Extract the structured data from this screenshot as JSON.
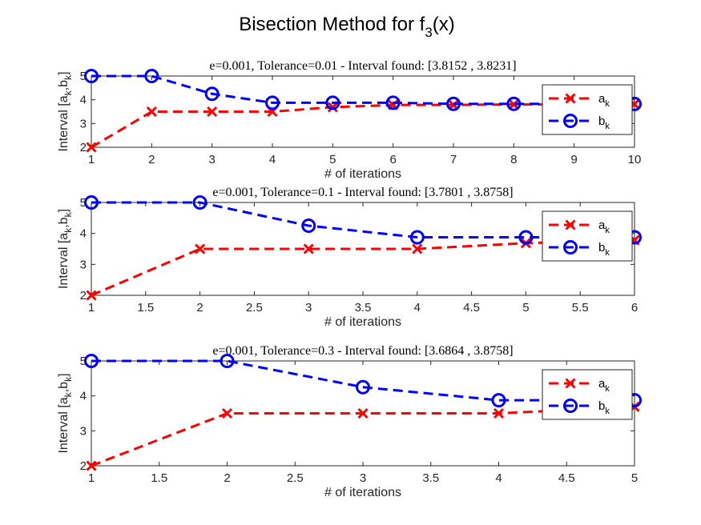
{
  "figure": {
    "title": "Bisection Method for f",
    "title_subscript": "3",
    "title_suffix": "(x)"
  },
  "colors": {
    "a_series": "#ff0000",
    "b_series": "#0000ff",
    "axes": "#262626"
  },
  "chart_data": [
    {
      "type": "line",
      "title": "e=0.001, Tolerance=0.01 - Interval found: [3.8152 , 3.8231]",
      "xlabel": "# of iterations",
      "ylabel": "Interval [a_k,b_k]",
      "xlim": [
        1,
        10
      ],
      "ylim": [
        2,
        5
      ],
      "xticks": [
        1,
        2,
        3,
        4,
        5,
        6,
        7,
        8,
        9,
        10
      ],
      "xtick_labels": [
        "1",
        "2",
        "3",
        "4",
        "5",
        "6",
        "7",
        "8",
        "9",
        "10"
      ],
      "yticks": [
        2,
        3,
        4,
        5
      ],
      "ytick_labels": [
        "2",
        "3",
        "4",
        "5"
      ],
      "legend_position": "top-right",
      "series": [
        {
          "name": "a",
          "sub": "k",
          "color": "#ff0000",
          "marker": "x",
          "x": [
            1,
            2,
            3,
            4,
            5,
            6,
            7,
            8,
            9,
            10
          ],
          "y": [
            2,
            3.5,
            3.5,
            3.5,
            3.6875,
            3.78125,
            3.78125,
            3.8047,
            3.8047,
            3.8152
          ]
        },
        {
          "name": "b",
          "sub": "k",
          "color": "#0000ff",
          "marker": "o",
          "x": [
            1,
            2,
            3,
            4,
            5,
            6,
            7,
            8,
            9,
            10
          ],
          "y": [
            5,
            5,
            4.25,
            3.875,
            3.875,
            3.875,
            3.8281,
            3.8281,
            3.8281,
            3.8231
          ]
        }
      ]
    },
    {
      "type": "line",
      "title": "e=0.001, Tolerance=0.1 - Interval found: [3.7801 , 3.8758]",
      "xlabel": "# of iterations",
      "ylabel": "Interval [a_k,b_k]",
      "xlim": [
        1,
        6
      ],
      "ylim": [
        2,
        5
      ],
      "xticks": [
        1,
        1.5,
        2,
        2.5,
        3,
        3.5,
        4,
        4.5,
        5,
        5.5,
        6
      ],
      "xtick_labels": [
        "1",
        "1.5",
        "2",
        "2.5",
        "3",
        "3.5",
        "4",
        "4.5",
        "5",
        "5.5",
        "6"
      ],
      "yticks": [
        2,
        3,
        4,
        5
      ],
      "ytick_labels": [
        "2",
        "3",
        "4",
        "5"
      ],
      "legend_position": "top-right",
      "series": [
        {
          "name": "a",
          "sub": "k",
          "color": "#ff0000",
          "marker": "x",
          "x": [
            1,
            2,
            3,
            4,
            5,
            6
          ],
          "y": [
            2,
            3.5,
            3.5,
            3.5,
            3.6864,
            3.7801
          ]
        },
        {
          "name": "b",
          "sub": "k",
          "color": "#0000ff",
          "marker": "o",
          "x": [
            1,
            2,
            3,
            4,
            5,
            6
          ],
          "y": [
            5,
            5,
            4.25,
            3.8758,
            3.8758,
            3.8758
          ]
        }
      ]
    },
    {
      "type": "line",
      "title": "e=0.001, Tolerance=0.3 - Interval found: [3.6864 , 3.8758]",
      "xlabel": "# of iterations",
      "ylabel": "Interval [a_k,b_k]",
      "xlim": [
        1,
        5
      ],
      "ylim": [
        2,
        5
      ],
      "xticks": [
        1,
        1.5,
        2,
        2.5,
        3,
        3.5,
        4,
        4.5,
        5
      ],
      "xtick_labels": [
        "1",
        "1.5",
        "2",
        "2.5",
        "3",
        "3.5",
        "4",
        "4.5",
        "5"
      ],
      "yticks": [
        2,
        3,
        4,
        5
      ],
      "ytick_labels": [
        "2",
        "3",
        "4",
        "5"
      ],
      "legend_position": "top-right",
      "series": [
        {
          "name": "a",
          "sub": "k",
          "color": "#ff0000",
          "marker": "x",
          "x": [
            1,
            2,
            3,
            4,
            5
          ],
          "y": [
            2,
            3.5,
            3.5,
            3.5,
            3.6864
          ]
        },
        {
          "name": "b",
          "sub": "k",
          "color": "#0000ff",
          "marker": "o",
          "x": [
            1,
            2,
            3,
            4,
            5
          ],
          "y": [
            5,
            5,
            4.25,
            3.8758,
            3.8758
          ]
        }
      ]
    }
  ]
}
